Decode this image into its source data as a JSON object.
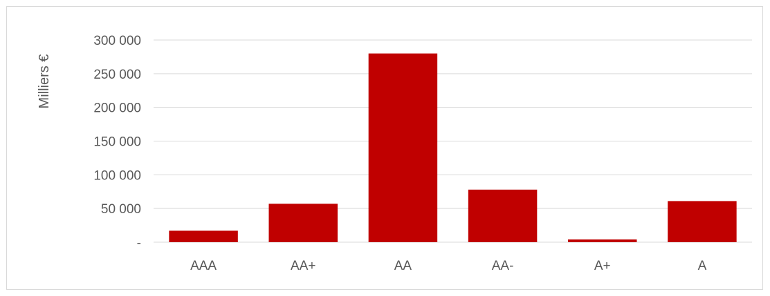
{
  "chart_data": {
    "type": "bar",
    "ylabel": "Milliers €",
    "categories": [
      "AAA",
      "AA+",
      "AA",
      "AA-",
      "A+",
      "A"
    ],
    "values": [
      17000,
      57000,
      280000,
      78000,
      4000,
      61000
    ],
    "ylim": [
      0,
      300000
    ],
    "yticks": [
      0,
      50000,
      100000,
      150000,
      200000,
      250000,
      300000
    ],
    "ytick_labels": [
      "-",
      "50 000",
      "100 000",
      "150 000",
      "200 000",
      "250 000",
      "300 000"
    ],
    "grid": true,
    "bar_color": "#c00000"
  }
}
